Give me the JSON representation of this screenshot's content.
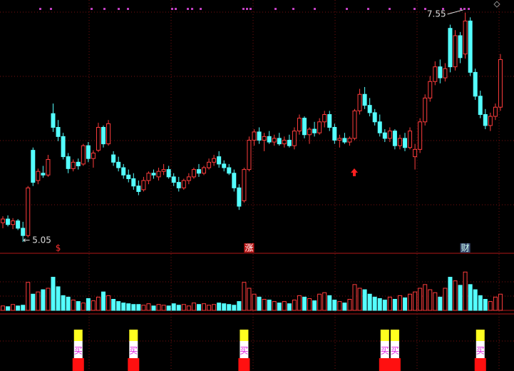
{
  "chart_data": {
    "type": "candlestick",
    "colors": {
      "up": "#ff3c3c",
      "down": "#54ffff"
    },
    "ylim": [
      4.95,
      7.65
    ],
    "ohlc": [
      [
        5.26,
        5.33,
        5.2,
        5.3
      ],
      [
        5.3,
        5.34,
        5.22,
        5.24
      ],
      [
        5.24,
        5.31,
        5.19,
        5.28
      ],
      [
        5.28,
        5.3,
        5.18,
        5.2
      ],
      [
        5.2,
        5.27,
        5.05,
        5.12
      ],
      [
        5.12,
        5.66,
        5.1,
        5.64
      ],
      [
        6.05,
        6.08,
        5.66,
        5.7
      ],
      [
        5.72,
        5.85,
        5.68,
        5.82
      ],
      [
        5.8,
        5.88,
        5.75,
        5.78
      ],
      [
        5.78,
        6.0,
        5.76,
        5.95
      ],
      [
        6.45,
        6.56,
        6.25,
        6.3
      ],
      [
        6.3,
        6.38,
        6.15,
        6.2
      ],
      [
        6.2,
        6.24,
        5.95,
        5.98
      ],
      [
        5.98,
        6.02,
        5.8,
        5.85
      ],
      [
        5.85,
        5.95,
        5.82,
        5.92
      ],
      [
        5.92,
        5.96,
        5.84,
        5.88
      ],
      [
        5.9,
        6.12,
        5.88,
        6.1
      ],
      [
        6.1,
        6.14,
        5.92,
        5.96
      ],
      [
        5.96,
        6.05,
        5.86,
        6.02
      ],
      [
        6.05,
        6.35,
        6.03,
        6.3
      ],
      [
        6.3,
        6.32,
        6.08,
        6.12
      ],
      [
        6.12,
        6.38,
        6.1,
        6.34
      ],
      [
        6.0,
        6.04,
        5.88,
        5.92
      ],
      [
        5.92,
        5.98,
        5.82,
        5.86
      ],
      [
        5.86,
        5.9,
        5.74,
        5.78
      ],
      [
        5.78,
        5.84,
        5.7,
        5.74
      ],
      [
        5.74,
        5.8,
        5.62,
        5.66
      ],
      [
        5.66,
        5.72,
        5.56,
        5.6
      ],
      [
        5.62,
        5.76,
        5.6,
        5.72
      ],
      [
        5.72,
        5.82,
        5.68,
        5.8
      ],
      [
        5.8,
        5.84,
        5.74,
        5.78
      ],
      [
        5.76,
        5.86,
        5.72,
        5.82
      ],
      [
        5.82,
        5.9,
        5.78,
        5.84
      ],
      [
        5.84,
        5.88,
        5.74,
        5.76
      ],
      [
        5.76,
        5.8,
        5.66,
        5.7
      ],
      [
        5.7,
        5.76,
        5.6,
        5.64
      ],
      [
        5.64,
        5.74,
        5.62,
        5.72
      ],
      [
        5.72,
        5.8,
        5.68,
        5.76
      ],
      [
        5.76,
        5.86,
        5.74,
        5.84
      ],
      [
        5.84,
        5.9,
        5.76,
        5.8
      ],
      [
        5.8,
        5.88,
        5.78,
        5.86
      ],
      [
        5.86,
        5.96,
        5.84,
        5.92
      ],
      [
        5.92,
        6.0,
        5.88,
        5.96
      ],
      [
        5.98,
        6.04,
        5.86,
        5.9
      ],
      [
        5.9,
        5.94,
        5.82,
        5.86
      ],
      [
        5.86,
        5.9,
        5.78,
        5.8
      ],
      [
        5.8,
        5.84,
        5.6,
        5.64
      ],
      [
        5.64,
        5.68,
        5.4,
        5.44
      ],
      [
        5.5,
        5.86,
        5.48,
        5.84
      ],
      [
        5.84,
        6.2,
        5.82,
        6.16
      ],
      [
        6.16,
        6.28,
        6.1,
        6.25
      ],
      [
        6.25,
        6.3,
        6.12,
        6.16
      ],
      [
        6.16,
        6.24,
        6.04,
        6.2
      ],
      [
        6.2,
        6.26,
        6.12,
        6.14
      ],
      [
        6.14,
        6.22,
        6.1,
        6.18
      ],
      [
        6.18,
        6.24,
        6.1,
        6.12
      ],
      [
        6.12,
        6.2,
        6.08,
        6.16
      ],
      [
        6.16,
        6.22,
        6.08,
        6.1
      ],
      [
        6.1,
        6.3,
        6.06,
        6.26
      ],
      [
        6.26,
        6.44,
        6.22,
        6.4
      ],
      [
        6.4,
        6.42,
        6.18,
        6.22
      ],
      [
        6.22,
        6.3,
        6.12,
        6.28
      ],
      [
        6.28,
        6.36,
        6.2,
        6.24
      ],
      [
        6.24,
        6.4,
        6.22,
        6.36
      ],
      [
        6.36,
        6.48,
        6.3,
        6.44
      ],
      [
        6.44,
        6.48,
        6.26,
        6.3
      ],
      [
        6.3,
        6.34,
        6.12,
        6.16
      ],
      [
        6.16,
        6.22,
        6.08,
        6.18
      ],
      [
        6.18,
        6.24,
        6.12,
        6.14
      ],
      [
        6.14,
        6.2,
        6.1,
        6.18
      ],
      [
        6.18,
        6.5,
        6.16,
        6.48
      ],
      [
        6.48,
        6.72,
        6.44,
        6.66
      ],
      [
        6.66,
        6.74,
        6.5,
        6.54
      ],
      [
        6.54,
        6.62,
        6.42,
        6.46
      ],
      [
        6.46,
        6.5,
        6.32,
        6.36
      ],
      [
        6.36,
        6.44,
        6.2,
        6.24
      ],
      [
        6.24,
        6.28,
        6.14,
        6.18
      ],
      [
        6.18,
        6.3,
        6.14,
        6.26
      ],
      [
        6.26,
        6.28,
        6.06,
        6.1
      ],
      [
        6.1,
        6.22,
        6.06,
        6.18
      ],
      [
        6.18,
        6.24,
        6.04,
        6.08
      ],
      [
        6.08,
        6.3,
        6.06,
        6.26
      ],
      [
        5.98,
        6.12,
        5.84,
        6.06
      ],
      [
        6.06,
        6.4,
        6.02,
        6.36
      ],
      [
        6.36,
        6.66,
        6.32,
        6.62
      ],
      [
        6.62,
        6.86,
        6.58,
        6.8
      ],
      [
        6.8,
        7.02,
        6.76,
        6.96
      ],
      [
        6.96,
        7.04,
        6.78,
        6.84
      ],
      [
        6.84,
        7.0,
        6.8,
        6.94
      ],
      [
        7.38,
        7.42,
        6.9,
        6.96
      ],
      [
        6.96,
        7.36,
        6.92,
        7.3
      ],
      [
        7.3,
        7.34,
        7.0,
        7.06
      ],
      [
        7.1,
        7.55,
        7.05,
        7.46
      ],
      [
        7.46,
        7.5,
        6.86,
        6.9
      ],
      [
        6.9,
        6.94,
        6.6,
        6.64
      ],
      [
        6.64,
        6.7,
        6.4,
        6.44
      ],
      [
        6.44,
        6.5,
        6.28,
        6.32
      ],
      [
        6.32,
        6.46,
        6.26,
        6.42
      ],
      [
        6.42,
        6.56,
        6.38,
        6.52
      ],
      [
        6.52,
        7.1,
        6.48,
        7.04
      ]
    ],
    "volume": [
      6,
      5,
      8,
      6,
      7,
      38,
      22,
      25,
      28,
      30,
      45,
      32,
      20,
      18,
      14,
      12,
      10,
      16,
      13,
      18,
      25,
      20,
      15,
      12,
      10,
      9,
      8,
      8,
      7,
      9,
      6,
      8,
      7,
      6,
      9,
      7,
      8,
      6,
      10,
      8,
      9,
      7,
      8,
      10,
      9,
      8,
      7,
      12,
      38,
      30,
      22,
      18,
      15,
      14,
      12,
      10,
      12,
      9,
      14,
      20,
      18,
      16,
      13,
      22,
      24,
      20,
      14,
      12,
      10,
      15,
      35,
      30,
      28,
      22,
      18,
      16,
      14,
      18,
      15,
      20,
      17,
      22,
      25,
      30,
      35,
      28,
      24,
      18,
      30,
      45,
      40,
      34,
      52,
      35,
      28,
      20,
      15,
      12,
      18,
      22
    ],
    "volume_lim": [
      0,
      60
    ],
    "high_annotation": {
      "value": 7.55,
      "index": 92
    },
    "low_annotation": {
      "value": 5.05,
      "index": 4,
      "arrow": "←"
    },
    "event_markers": [
      {
        "label": "$",
        "index": 11
      },
      {
        "label": "涨",
        "index": 49
      },
      {
        "label": "财",
        "index": 92
      }
    ],
    "buy_signals": {
      "label": "买",
      "indices": [
        15,
        26,
        48,
        76,
        78,
        95
      ]
    }
  }
}
